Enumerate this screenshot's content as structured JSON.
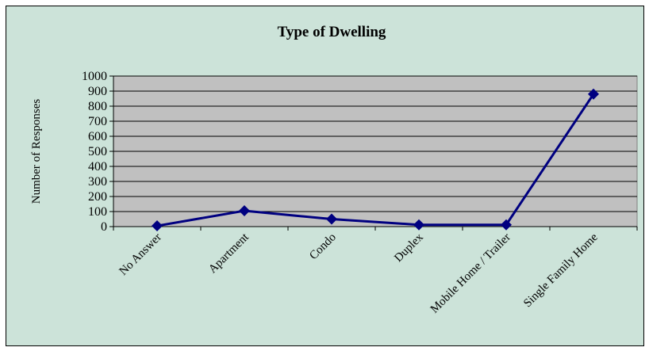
{
  "chart_data": {
    "type": "line",
    "title": "Type of Dwelling",
    "xlabel": "",
    "ylabel": "Number of Responses",
    "categories": [
      "No Answer",
      "Apartment",
      "Condo",
      "Duplex",
      "Mobile Home / Trailer",
      "Single Family Home"
    ],
    "series": [
      {
        "values": [
          5,
          105,
          50,
          12,
          12,
          880
        ]
      }
    ],
    "ylim": [
      0,
      1000
    ],
    "yticks": [
      0,
      100,
      200,
      300,
      400,
      500,
      600,
      700,
      800,
      900,
      1000
    ],
    "grid": true,
    "legend": "none",
    "colors": {
      "frame_bg": "#cce3d9",
      "plot_bg": "#c0c0c0",
      "line": "#000080"
    }
  }
}
